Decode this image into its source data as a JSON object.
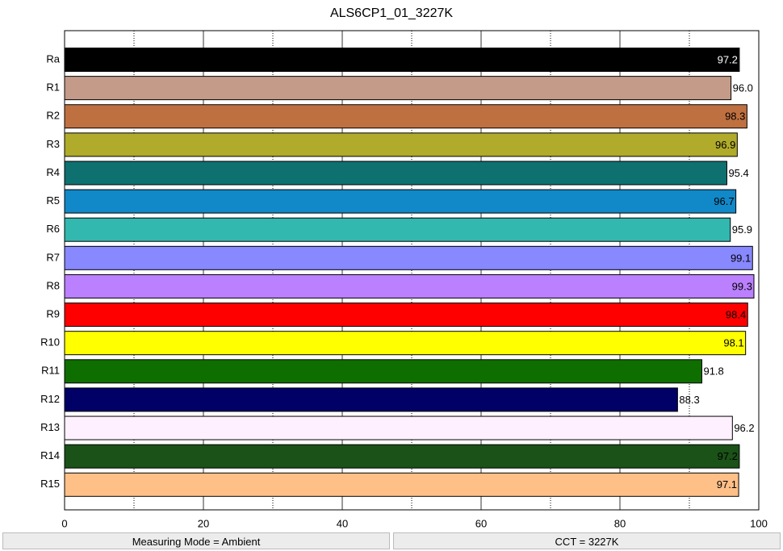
{
  "chart_data": {
    "type": "barh",
    "title": "ALS6CP1_01_3227K",
    "categories": [
      "Ra",
      "R1",
      "R2",
      "R3",
      "R4",
      "R5",
      "R6",
      "R7",
      "R8",
      "R9",
      "R10",
      "R11",
      "R12",
      "R13",
      "R14",
      "R15"
    ],
    "values": [
      97.2,
      96,
      98.3,
      96.9,
      95.4,
      96.7,
      95.9,
      99.1,
      99.3,
      98.4,
      98.1,
      91.8,
      88.3,
      96.2,
      97.2,
      97.1
    ],
    "value_labels": [
      "97.2",
      "96.0",
      "98.3",
      "96.9",
      "95.4",
      "96.7",
      "95.9",
      "99.1",
      "99.3",
      "98.4",
      "98.1",
      "91.8",
      "88.3",
      "96.2",
      "97.2",
      "97.1"
    ],
    "value_label_positions": [
      "inside",
      "outside",
      "inside",
      "inside",
      "outside",
      "inside",
      "outside",
      "inside",
      "inside",
      "inside",
      "inside",
      "outside",
      "outside",
      "outside",
      "inside",
      "inside"
    ],
    "value_label_colors": [
      "#ffffff",
      "#000000",
      "#000000",
      "#000000",
      "#000000",
      "#000000",
      "#000000",
      "#000000",
      "#000000",
      "#000000",
      "#000000",
      "#000000",
      "#000000",
      "#000000",
      "#000000",
      "#000000"
    ],
    "colors": [
      "#000000",
      "#c49a88",
      "#bf7040",
      "#b0ab2a",
      "#0f7070",
      "#1188c8",
      "#33b8b0",
      "#8888ff",
      "#bb80ff",
      "#ff0000",
      "#ffff00",
      "#0f6e00",
      "#000066",
      "#fff0ff",
      "#1a5218",
      "#ffc088"
    ],
    "xlim": [
      0,
      100
    ],
    "xticks": [
      0,
      20,
      40,
      60,
      80,
      100
    ],
    "xminor_ticks": [
      10,
      30,
      50,
      70,
      90
    ],
    "grid": true
  },
  "status_bar": {
    "left": "Measuring Mode = Ambient",
    "right": "CCT = 3227K"
  }
}
